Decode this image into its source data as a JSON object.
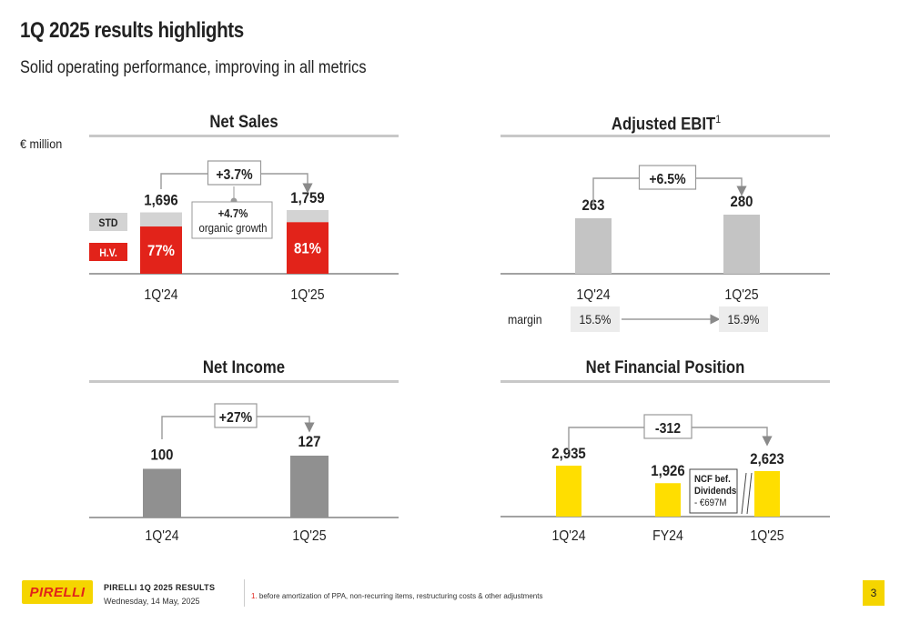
{
  "header": {
    "title": "1Q 2025 results highlights",
    "subtitle": "Solid operating performance, improving in all metrics"
  },
  "unit": "€ million",
  "colors": {
    "red": "#e2231a",
    "light_grey": "#d3d3d3",
    "mid_grey": "#c4c4c4",
    "dark_grey": "#909090",
    "yellow": "#ffde00"
  },
  "chart_data": [
    {
      "type": "bar",
      "title": "Net Sales",
      "categories": [
        "1Q'24",
        "1Q'25"
      ],
      "values": [
        1696,
        1759
      ],
      "value_labels": [
        "1,696",
        "1,759"
      ],
      "series": [
        {
          "name": "H.V.",
          "share_labels": [
            "77%",
            "81%"
          ],
          "shares": [
            0.77,
            0.81
          ]
        },
        {
          "name": "STD",
          "shares": [
            0.23,
            0.19
          ]
        }
      ],
      "change_label": "+3.7%",
      "organic_value": "+4.7%",
      "organic_text": "organic growth"
    },
    {
      "type": "bar",
      "title": "Adjusted EBIT",
      "title_sup": "1",
      "categories": [
        "1Q'24",
        "1Q'25"
      ],
      "values": [
        263,
        280
      ],
      "value_labels": [
        "263",
        "280"
      ],
      "change_label": "+6.5%",
      "margin_label": "margin",
      "margins": [
        "15.5%",
        "15.9%"
      ]
    },
    {
      "type": "bar",
      "title": "Net Income",
      "categories": [
        "1Q'24",
        "1Q'25"
      ],
      "values": [
        100,
        127
      ],
      "value_labels": [
        "100",
        "127"
      ],
      "change_label": "+27%"
    },
    {
      "type": "bar",
      "title": "Net Financial Position",
      "categories": [
        "1Q'24",
        "FY24",
        "1Q'25"
      ],
      "values": [
        2935,
        1926,
        2623
      ],
      "value_labels": [
        "2,935",
        "1,926",
        "2,623"
      ],
      "change_label": "-312",
      "ncf_lines": [
        "NCF bef.",
        "Dividends",
        "- €697M"
      ]
    }
  ],
  "footer": {
    "logo_text": "PIRELLI",
    "brand": "PIRELLI 1Q 2025 RESULTS",
    "date": "Wednesday, 14 May, 2025",
    "footnote_num": "1.",
    "footnote": "before amortization of PPA, non-recurring items, restructuring costs & other adjustments",
    "page": "3"
  }
}
